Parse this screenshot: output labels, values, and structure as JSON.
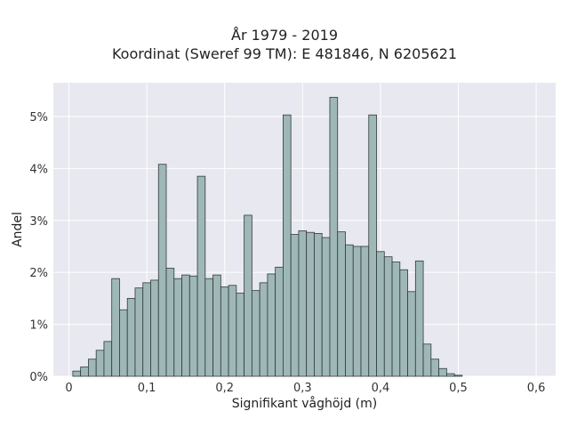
{
  "chart_data": {
    "type": "bar",
    "title": "År 1979 - 2019",
    "subtitle": "Koordinat (Sweref 99 TM): E 481846, N 6205621",
    "xlabel": "Signifikant våghöjd (m)",
    "ylabel": "Andel",
    "xlim": [
      -0.02,
      0.625
    ],
    "ylim": [
      0,
      0.0565
    ],
    "grid": true,
    "bin_width": 0.01,
    "x_ticks": [
      0,
      0.1,
      0.2,
      0.3,
      0.4,
      0.5,
      0.6
    ],
    "x_tick_labels": [
      "0",
      "0,1",
      "0,2",
      "0,3",
      "0,4",
      "0,5",
      "0,6"
    ],
    "y_ticks": [
      0,
      0.01,
      0.02,
      0.03,
      0.04,
      0.05
    ],
    "y_tick_labels": [
      "0%",
      "1%",
      "2%",
      "3%",
      "4%",
      "5%"
    ],
    "bar_color": "#9fb7b7",
    "bar_edge_color": "#2f3b3b",
    "plot_background": "#e8e8f0",
    "x": [
      0.01,
      0.02,
      0.03,
      0.04,
      0.05,
      0.06,
      0.07,
      0.08,
      0.09,
      0.1,
      0.11,
      0.12,
      0.13,
      0.14,
      0.15,
      0.16,
      0.17,
      0.18,
      0.19,
      0.2,
      0.21,
      0.22,
      0.23,
      0.24,
      0.25,
      0.26,
      0.27,
      0.28,
      0.29,
      0.3,
      0.31,
      0.32,
      0.33,
      0.34,
      0.35,
      0.36,
      0.37,
      0.38,
      0.39,
      0.4,
      0.41,
      0.42,
      0.43,
      0.44,
      0.45,
      0.46,
      0.47,
      0.48,
      0.49,
      0.5,
      0.51,
      0.52,
      0.53,
      0.54,
      0.55,
      0.56,
      0.57,
      0.58
    ],
    "values": [
      0.001,
      0.0018,
      0.0033,
      0.005,
      0.0067,
      0.0188,
      0.0128,
      0.015,
      0.017,
      0.018,
      0.0185,
      0.0408,
      0.0208,
      0.0188,
      0.0195,
      0.0193,
      0.0385,
      0.0188,
      0.0195,
      0.0172,
      0.0175,
      0.016,
      0.031,
      0.0165,
      0.018,
      0.0197,
      0.021,
      0.0503,
      0.0273,
      0.028,
      0.0277,
      0.0275,
      0.0267,
      0.0537,
      0.0278,
      0.0253,
      0.025,
      0.025,
      0.0503,
      0.024,
      0.023,
      0.022,
      0.0205,
      0.0163,
      0.0222,
      0.0062,
      0.0033,
      0.0015,
      0.0005,
      0.0002,
      0,
      0,
      0,
      0,
      0,
      0,
      0,
      0
    ]
  }
}
